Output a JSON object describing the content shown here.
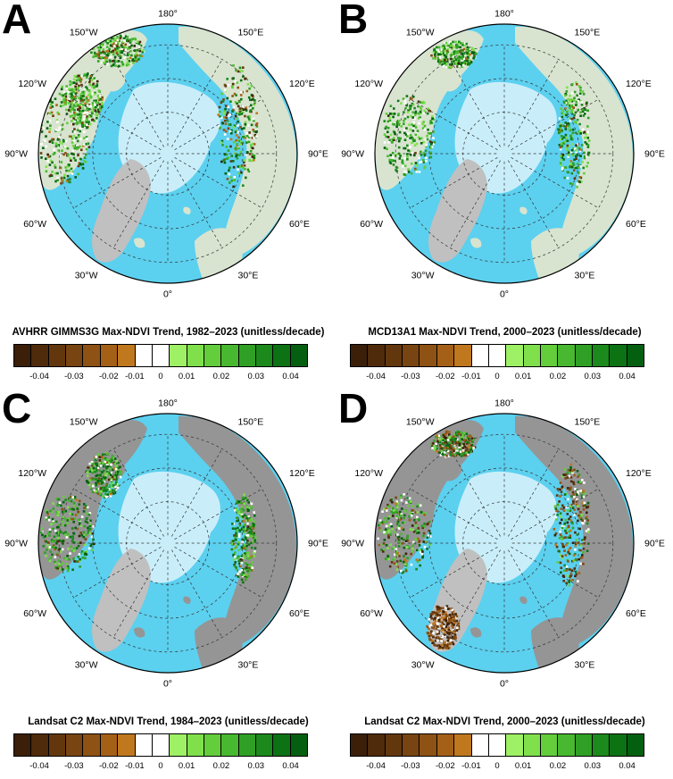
{
  "colors": {
    "ocean": "#5cd0ef",
    "sea_ice": "#c9eefa",
    "greenland": "#c0c0c0",
    "outside": "#9a9a9a",
    "no_data_land": "#959595",
    "vegetated_land": "#d8e4cf"
  },
  "longitude_labels": [
    "180°",
    "150°E",
    "120°E",
    "90°E",
    "60°E",
    "30°E",
    "0°",
    "30°W",
    "60°W",
    "90°W",
    "120°W",
    "150°W"
  ],
  "colorbar": {
    "ticks": [
      "-0.04",
      "-0.03",
      "-0.02",
      "-0.01",
      "0",
      "0.01",
      "0.02",
      "0.03",
      "0.04"
    ],
    "classes": [
      "#3b1f08",
      "#4f2b0b",
      "#63370e",
      "#784411",
      "#8e5214",
      "#a56018",
      "#c0781e",
      "#ffffff",
      "#ffffff",
      "#9ef064",
      "#80e04c",
      "#63cd3c",
      "#47b82f",
      "#2fa025",
      "#1b891c",
      "#0c7214",
      "#055f10"
    ]
  },
  "panels": [
    {
      "letter": "A",
      "title": "AVHRR GIMMS3G Max-NDVI Trend, 1982–2023 (unitless/decade)"
    },
    {
      "letter": "B",
      "title": "MCD13A1 Max-NDVI Trend, 2000–2023 (unitless/decade)"
    },
    {
      "letter": "C",
      "title": "Landsat C2 Max-NDVI Trend, 1984–2023 (unitless/decade)"
    },
    {
      "letter": "D",
      "title": "Landsat C2 Max-NDVI Trend, 2000–2023 (unitless/decade)"
    }
  ]
}
